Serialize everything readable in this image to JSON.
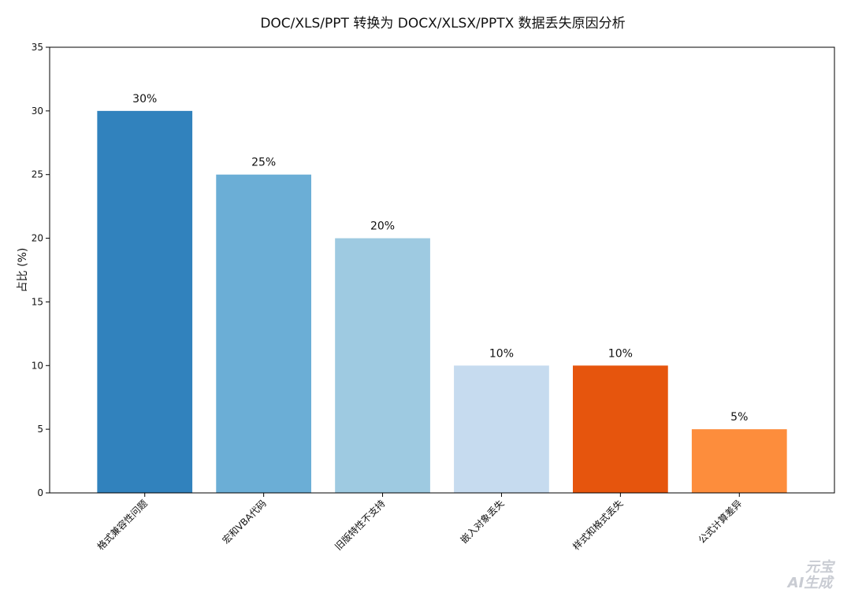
{
  "chart_data": {
    "type": "bar",
    "title": "DOC/XLS/PPT 转换为 DOCX/XLSX/PPTX 数据丢失原因分析",
    "xlabel": "",
    "ylabel": "占比 (%)",
    "categories": [
      "格式兼容性问题",
      "宏和VBA代码",
      "旧版特性不支持",
      "嵌入对象丢失",
      "样式和格式丢失",
      "公式计算差异"
    ],
    "values": [
      30,
      25,
      20,
      10,
      10,
      5
    ],
    "data_labels": [
      "30%",
      "25%",
      "20%",
      "10%",
      "10%",
      "5%"
    ],
    "bar_colors": [
      "#3182bd",
      "#6baed6",
      "#9ecae1",
      "#c6dbef",
      "#e6550d",
      "#fd8d3c"
    ],
    "ylim": [
      0,
      35
    ],
    "yticks": [
      0,
      5,
      10,
      15,
      20,
      25,
      30,
      35
    ],
    "grid": false,
    "legend": "none"
  },
  "watermark": {
    "line1": "元宝",
    "line2": "AI生成"
  }
}
